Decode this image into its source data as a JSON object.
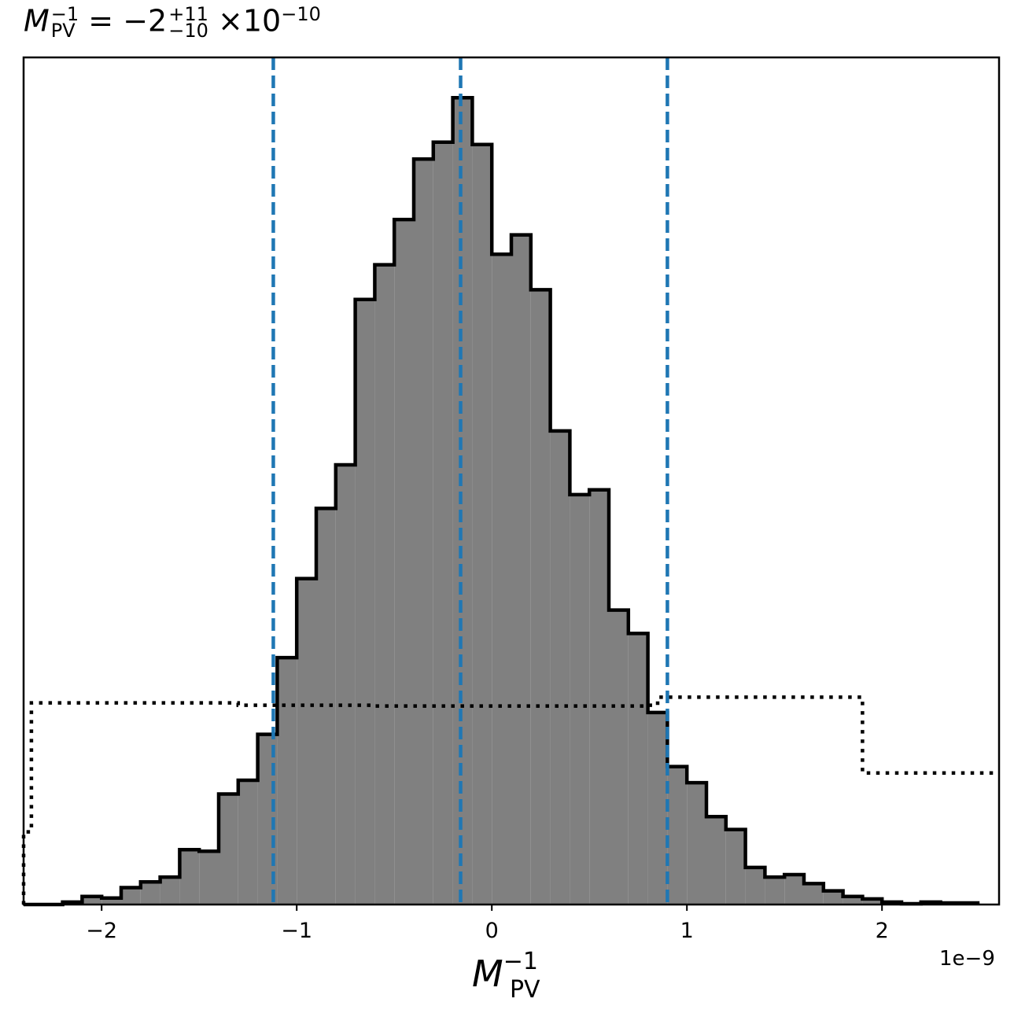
{
  "title": {
    "lhs_symbol": "M",
    "lhs_sup": "−1",
    "lhs_sub": "PV",
    "equals": "=",
    "value": "−2",
    "err_plus": "+11",
    "err_minus": "−10",
    "times": "×",
    "scale_base": "10",
    "scale_exp": "−10"
  },
  "xlabel": {
    "symbol": "M",
    "sup": "−1",
    "sub": "PV"
  },
  "offset_text": "1e−9",
  "chart_data": {
    "type": "histogram",
    "xlim": [
      -2.4e-09,
      2.6e-09
    ],
    "ylim": [
      0,
      1.05
    ],
    "xticks": [
      {
        "value": -2e-09,
        "label": "−2"
      },
      {
        "value": -1e-09,
        "label": "−1"
      },
      {
        "value": 0,
        "label": "0"
      },
      {
        "value": 1e-09,
        "label": "1"
      },
      {
        "value": 2e-09,
        "label": "2"
      }
    ],
    "bin_width": 1e-10,
    "histogram": {
      "fill": "#808080",
      "edge": "#000000",
      "bins": [
        {
          "x0": -2.4e-09,
          "y": 0.0
        },
        {
          "x0": -2.3e-09,
          "y": 0.0
        },
        {
          "x0": -2.2e-09,
          "y": 0.003
        },
        {
          "x0": -2.1e-09,
          "y": 0.01
        },
        {
          "x0": -2e-09,
          "y": 0.008
        },
        {
          "x0": -1.9e-09,
          "y": 0.021
        },
        {
          "x0": -1.8e-09,
          "y": 0.028
        },
        {
          "x0": -1.7e-09,
          "y": 0.034
        },
        {
          "x0": -1.6e-09,
          "y": 0.068
        },
        {
          "x0": -1.5e-09,
          "y": 0.066
        },
        {
          "x0": -1.4e-09,
          "y": 0.137
        },
        {
          "x0": -1.3e-09,
          "y": 0.154
        },
        {
          "x0": -1.2e-09,
          "y": 0.211
        },
        {
          "x0": -1.1e-09,
          "y": 0.306
        },
        {
          "x0": -1e-09,
          "y": 0.404
        },
        {
          "x0": -9e-10,
          "y": 0.491
        },
        {
          "x0": -8e-10,
          "y": 0.545
        },
        {
          "x0": -7e-10,
          "y": 0.75
        },
        {
          "x0": -6e-10,
          "y": 0.793
        },
        {
          "x0": -5e-10,
          "y": 0.849
        },
        {
          "x0": -4e-10,
          "y": 0.924
        },
        {
          "x0": -3e-10,
          "y": 0.945
        },
        {
          "x0": -2e-10,
          "y": 1.0
        },
        {
          "x0": -1e-10,
          "y": 0.942
        },
        {
          "x0": 0.0,
          "y": 0.806
        },
        {
          "x0": 1e-10,
          "y": 0.83
        },
        {
          "x0": 2e-10,
          "y": 0.762
        },
        {
          "x0": 3e-10,
          "y": 0.587
        },
        {
          "x0": 4e-10,
          "y": 0.508
        },
        {
          "x0": 5e-10,
          "y": 0.514
        },
        {
          "x0": 6e-10,
          "y": 0.365
        },
        {
          "x0": 7e-10,
          "y": 0.336
        },
        {
          "x0": 8e-10,
          "y": 0.238
        },
        {
          "x0": 9e-10,
          "y": 0.171
        },
        {
          "x0": 1e-09,
          "y": 0.151
        },
        {
          "x0": 1.1e-09,
          "y": 0.109
        },
        {
          "x0": 1.2e-09,
          "y": 0.093
        },
        {
          "x0": 1.3e-09,
          "y": 0.046
        },
        {
          "x0": 1.4e-09,
          "y": 0.034
        },
        {
          "x0": 1.5e-09,
          "y": 0.037
        },
        {
          "x0": 1.6e-09,
          "y": 0.026
        },
        {
          "x0": 1.7e-09,
          "y": 0.017
        },
        {
          "x0": 1.8e-09,
          "y": 0.01
        },
        {
          "x0": 1.9e-09,
          "y": 0.007
        },
        {
          "x0": 2e-09,
          "y": 0.003
        },
        {
          "x0": 2.1e-09,
          "y": 0.001
        },
        {
          "x0": 2.2e-09,
          "y": 0.003
        },
        {
          "x0": 2.3e-09,
          "y": 0.002
        },
        {
          "x0": 2.4e-09,
          "y": 0.002
        }
      ]
    },
    "prior_step": {
      "style": "dotted",
      "color": "#000000",
      "edges": [
        -2.4e-09,
        -2.36e-09,
        -1.3e-09,
        -6e-10,
        8e-10,
        8.5e-10,
        1.9e-09,
        2.6e-09
      ],
      "values": [
        0.09,
        0.25,
        0.247,
        0.246,
        0.247,
        0.257,
        0.163
      ]
    },
    "quantile_lines": {
      "color": "#1f77b4",
      "style": "dashed",
      "x": [
        -1.12e-09,
        -1.6e-10,
        9e-10
      ]
    }
  }
}
